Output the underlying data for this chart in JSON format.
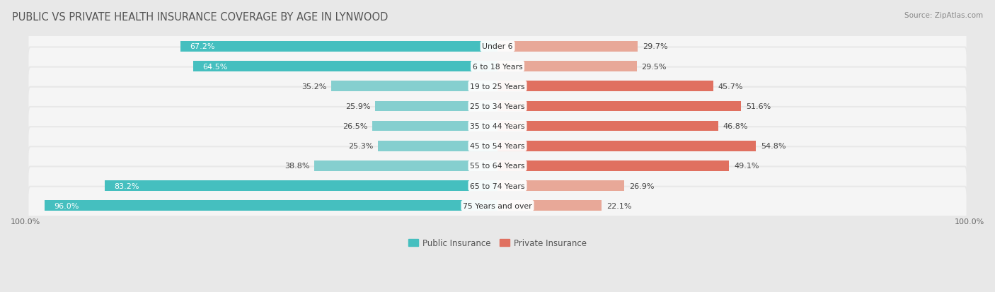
{
  "title": "PUBLIC VS PRIVATE HEALTH INSURANCE COVERAGE BY AGE IN LYNWOOD",
  "source": "Source: ZipAtlas.com",
  "categories": [
    "Under 6",
    "6 to 18 Years",
    "19 to 25 Years",
    "25 to 34 Years",
    "35 to 44 Years",
    "45 to 54 Years",
    "55 to 64 Years",
    "65 to 74 Years",
    "75 Years and over"
  ],
  "public": [
    67.2,
    64.5,
    35.2,
    25.9,
    26.5,
    25.3,
    38.8,
    83.2,
    96.0
  ],
  "private": [
    29.7,
    29.5,
    45.7,
    51.6,
    46.8,
    54.8,
    49.1,
    26.9,
    22.1
  ],
  "public_colors": [
    "#45BFBF",
    "#45BFBF",
    "#85CFCF",
    "#85CFCF",
    "#85CFCF",
    "#85CFCF",
    "#85CFCF",
    "#45BFBF",
    "#45BFBF"
  ],
  "private_colors": [
    "#E8A898",
    "#E8A898",
    "#E07060",
    "#E07060",
    "#E07060",
    "#E07060",
    "#E07060",
    "#E8A898",
    "#E8A898"
  ],
  "public_legend_color": "#45BFBF",
  "private_legend_color": "#E07060",
  "outer_bg": "#e8e8e8",
  "row_bg": "#f5f5f5",
  "title_color": "#555555",
  "source_color": "#888888",
  "label_dark_color": "#444444",
  "label_white_color": "#ffffff",
  "tick_label": "100.0%",
  "max_val": 100.0,
  "title_fontsize": 10.5,
  "label_fontsize": 8.0,
  "tick_fontsize": 8.0,
  "legend_fontsize": 8.5,
  "source_fontsize": 7.5
}
